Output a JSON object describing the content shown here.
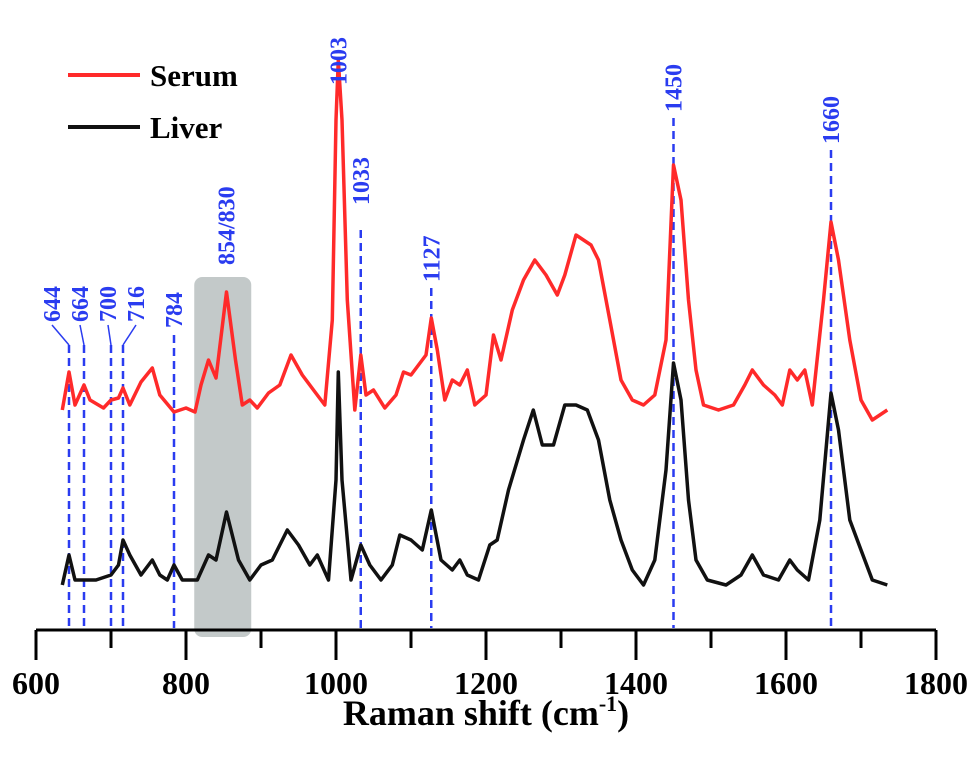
{
  "chart_data": {
    "type": "line",
    "title": "",
    "xlabel": "Raman shift (cm",
    "xlabel_sup": "-1",
    "xlabel_close": ")",
    "ylabel": "",
    "xlim": [
      600,
      1800
    ],
    "ylim": [
      0,
      600
    ],
    "x_ticks": [
      600,
      800,
      1000,
      1200,
      1400,
      1600,
      1800
    ],
    "x_tick_labels": [
      "600",
      "800",
      "1000",
      "1200",
      "1400",
      "1600",
      "1800"
    ],
    "x_minor_step": 100,
    "grid": false,
    "legend_placement": "top-left",
    "colors": {
      "serum": "#ff2a2a",
      "liver": "#111111",
      "marker": "#2a3cf0",
      "band": "#c3c9c9"
    },
    "series": [
      {
        "name": "Serum",
        "color": "#ff2a2a",
        "points": [
          [
            635,
            220
          ],
          [
            644,
            258
          ],
          [
            652,
            225
          ],
          [
            664,
            245
          ],
          [
            672,
            230
          ],
          [
            690,
            222
          ],
          [
            700,
            230
          ],
          [
            710,
            232
          ],
          [
            716,
            242
          ],
          [
            725,
            225
          ],
          [
            740,
            248
          ],
          [
            755,
            262
          ],
          [
            765,
            235
          ],
          [
            784,
            218
          ],
          [
            800,
            222
          ],
          [
            812,
            218
          ],
          [
            820,
            245
          ],
          [
            830,
            270
          ],
          [
            840,
            252
          ],
          [
            854,
            338
          ],
          [
            866,
            270
          ],
          [
            875,
            225
          ],
          [
            885,
            230
          ],
          [
            895,
            222
          ],
          [
            910,
            237
          ],
          [
            925,
            245
          ],
          [
            940,
            275
          ],
          [
            955,
            255
          ],
          [
            970,
            240
          ],
          [
            985,
            225
          ],
          [
            995,
            310
          ],
          [
            1000,
            510
          ],
          [
            1003,
            570
          ],
          [
            1008,
            510
          ],
          [
            1015,
            330
          ],
          [
            1025,
            220
          ],
          [
            1033,
            275
          ],
          [
            1040,
            235
          ],
          [
            1050,
            240
          ],
          [
            1065,
            222
          ],
          [
            1080,
            235
          ],
          [
            1090,
            258
          ],
          [
            1100,
            255
          ],
          [
            1110,
            265
          ],
          [
            1120,
            275
          ],
          [
            1127,
            312
          ],
          [
            1135,
            280
          ],
          [
            1145,
            230
          ],
          [
            1155,
            250
          ],
          [
            1165,
            245
          ],
          [
            1175,
            260
          ],
          [
            1185,
            225
          ],
          [
            1200,
            235
          ],
          [
            1210,
            295
          ],
          [
            1220,
            270
          ],
          [
            1235,
            320
          ],
          [
            1250,
            350
          ],
          [
            1265,
            370
          ],
          [
            1280,
            355
          ],
          [
            1295,
            335
          ],
          [
            1305,
            355
          ],
          [
            1320,
            395
          ],
          [
            1330,
            390
          ],
          [
            1340,
            385
          ],
          [
            1350,
            370
          ],
          [
            1365,
            310
          ],
          [
            1380,
            250
          ],
          [
            1395,
            230
          ],
          [
            1410,
            225
          ],
          [
            1425,
            235
          ],
          [
            1440,
            290
          ],
          [
            1450,
            465
          ],
          [
            1460,
            430
          ],
          [
            1470,
            330
          ],
          [
            1480,
            260
          ],
          [
            1490,
            225
          ],
          [
            1510,
            220
          ],
          [
            1530,
            225
          ],
          [
            1545,
            245
          ],
          [
            1555,
            260
          ],
          [
            1570,
            245
          ],
          [
            1585,
            235
          ],
          [
            1595,
            225
          ],
          [
            1605,
            260
          ],
          [
            1615,
            250
          ],
          [
            1625,
            260
          ],
          [
            1635,
            225
          ],
          [
            1650,
            330
          ],
          [
            1660,
            408
          ],
          [
            1670,
            370
          ],
          [
            1685,
            290
          ],
          [
            1700,
            230
          ],
          [
            1715,
            210
          ],
          [
            1735,
            220
          ]
        ]
      },
      {
        "name": "Liver",
        "color": "#111111",
        "points": [
          [
            635,
            45
          ],
          [
            644,
            75
          ],
          [
            652,
            50
          ],
          [
            664,
            50
          ],
          [
            680,
            50
          ],
          [
            700,
            55
          ],
          [
            710,
            65
          ],
          [
            716,
            90
          ],
          [
            725,
            75
          ],
          [
            740,
            55
          ],
          [
            755,
            70
          ],
          [
            765,
            55
          ],
          [
            775,
            50
          ],
          [
            784,
            65
          ],
          [
            795,
            50
          ],
          [
            815,
            50
          ],
          [
            830,
            75
          ],
          [
            840,
            70
          ],
          [
            854,
            118
          ],
          [
            870,
            70
          ],
          [
            885,
            50
          ],
          [
            900,
            65
          ],
          [
            915,
            70
          ],
          [
            935,
            100
          ],
          [
            950,
            85
          ],
          [
            965,
            65
          ],
          [
            975,
            75
          ],
          [
            990,
            50
          ],
          [
            1000,
            150
          ],
          [
            1003,
            258
          ],
          [
            1008,
            150
          ],
          [
            1020,
            50
          ],
          [
            1033,
            85
          ],
          [
            1045,
            65
          ],
          [
            1060,
            50
          ],
          [
            1075,
            65
          ],
          [
            1085,
            95
          ],
          [
            1100,
            90
          ],
          [
            1115,
            80
          ],
          [
            1127,
            120
          ],
          [
            1140,
            70
          ],
          [
            1155,
            60
          ],
          [
            1165,
            70
          ],
          [
            1175,
            55
          ],
          [
            1190,
            50
          ],
          [
            1205,
            85
          ],
          [
            1215,
            90
          ],
          [
            1230,
            140
          ],
          [
            1250,
            190
          ],
          [
            1263,
            220
          ],
          [
            1275,
            185
          ],
          [
            1290,
            185
          ],
          [
            1305,
            225
          ],
          [
            1320,
            225
          ],
          [
            1335,
            220
          ],
          [
            1350,
            190
          ],
          [
            1365,
            130
          ],
          [
            1380,
            90
          ],
          [
            1395,
            60
          ],
          [
            1410,
            45
          ],
          [
            1425,
            70
          ],
          [
            1440,
            160
          ],
          [
            1450,
            267
          ],
          [
            1460,
            230
          ],
          [
            1470,
            130
          ],
          [
            1480,
            70
          ],
          [
            1495,
            50
          ],
          [
            1520,
            45
          ],
          [
            1540,
            55
          ],
          [
            1555,
            75
          ],
          [
            1570,
            55
          ],
          [
            1590,
            50
          ],
          [
            1605,
            70
          ],
          [
            1615,
            60
          ],
          [
            1630,
            50
          ],
          [
            1645,
            110
          ],
          [
            1660,
            237
          ],
          [
            1670,
            200
          ],
          [
            1685,
            110
          ],
          [
            1700,
            80
          ],
          [
            1715,
            50
          ],
          [
            1735,
            45
          ]
        ]
      }
    ],
    "annotations": [
      {
        "label": "644",
        "x": 644,
        "dashed": true
      },
      {
        "label": "664",
        "x": 664,
        "dashed": true
      },
      {
        "label": "700",
        "x": 700,
        "dashed": true
      },
      {
        "label": "716",
        "x": 716,
        "dashed": true
      },
      {
        "label": "784",
        "x": 784,
        "dashed": true
      },
      {
        "label": "854/830",
        "x": 854,
        "dashed": false
      },
      {
        "label": "1003",
        "x": 1003,
        "dashed": false
      },
      {
        "label": "1033",
        "x": 1033,
        "dashed": true
      },
      {
        "label": "1127",
        "x": 1127,
        "dashed": true
      },
      {
        "label": "1450",
        "x": 1450,
        "dashed": true
      },
      {
        "label": "1660",
        "x": 1660,
        "dashed": true
      }
    ],
    "shaded_band": {
      "x_range": [
        811,
        887
      ]
    }
  }
}
